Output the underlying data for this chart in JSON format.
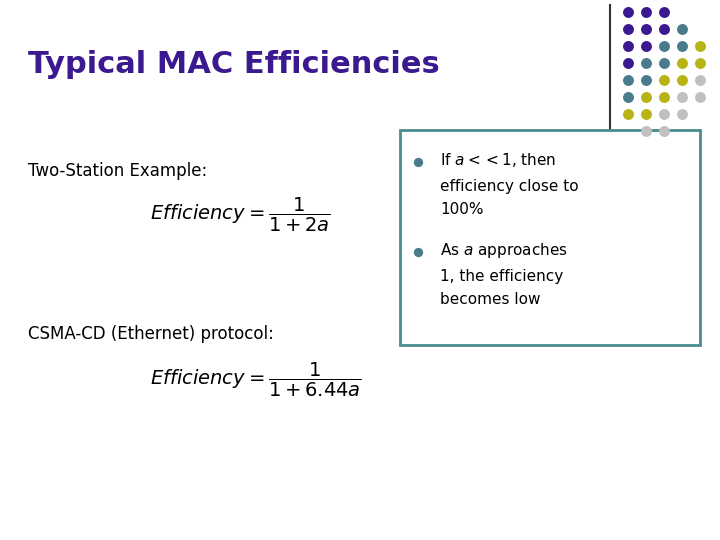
{
  "title": "Typical MAC Efficiencies",
  "title_color": "#3B1A8F",
  "title_fontsize": 22,
  "bg_color": "#FFFFFF",
  "subtitle1": "Two-Station Example:",
  "formula1": "$\\mathit{Efficiency} = \\dfrac{1}{1+2a}$",
  "subtitle2": "CSMA-CD (Ethernet) protocol:",
  "formula2": "$\\mathit{Efficiency} = \\dfrac{1}{1+6.44a}$",
  "bullet1_line1": "If $a<<1$, then",
  "bullet1_line2": "efficiency close to",
  "bullet1_line3": "100%",
  "bullet2_line1": "As $a$ approaches",
  "bullet2_line2": "1, the efficiency",
  "bullet2_line3": "becomes low",
  "bullet_color": "#4A7B8C",
  "box_edge_color": "#4A8C8C",
  "text_color": "#000000",
  "dot_colors": [
    [
      "#3B1A8F",
      "#3B1A8F",
      "#3B1A8F",
      null,
      null
    ],
    [
      "#3B1A8F",
      "#3B1A8F",
      "#3B1A8F",
      "#4A7B8C",
      null
    ],
    [
      "#3B1A8F",
      "#3B1A8F",
      "#4A7B8C",
      "#4A7B8C",
      "#B8B417"
    ],
    [
      "#3B1A8F",
      "#4A7B8C",
      "#4A7B8C",
      "#B8B417",
      "#B8B417"
    ],
    [
      "#4A7B8C",
      "#4A7B8C",
      "#B8B417",
      "#B8B417",
      "#C0C0C0"
    ],
    [
      "#4A7B8C",
      "#B8B417",
      "#B8B417",
      "#C0C0C0",
      "#C0C0C0"
    ],
    [
      "#B8B417",
      "#B8B417",
      "#C0C0C0",
      "#C0C0C0",
      null
    ],
    [
      null,
      "#C0C0C0",
      "#C0C0C0",
      null,
      null
    ]
  ]
}
